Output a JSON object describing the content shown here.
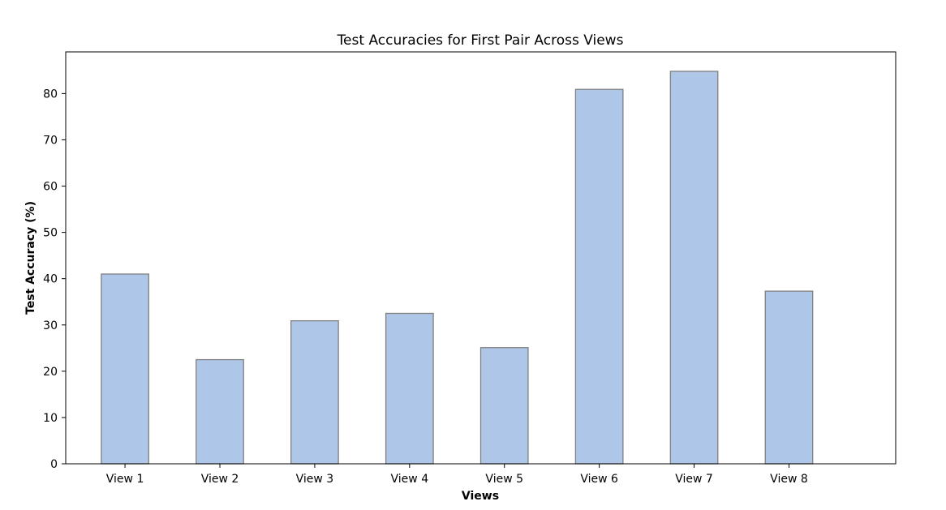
{
  "chart_data": {
    "type": "bar",
    "title": "Test Accuracies for First Pair Across Views",
    "xlabel": "Views",
    "ylabel": "Test Accuracy (%)",
    "categories": [
      "View 1",
      "View 2",
      "View 3",
      "View 4",
      "View 5",
      "View 6",
      "View 7",
      "View 8"
    ],
    "values": [
      41.0,
      22.5,
      30.9,
      32.5,
      25.1,
      80.9,
      84.8,
      37.3
    ],
    "ylim": [
      0,
      89
    ],
    "yticks": [
      0,
      10,
      20,
      30,
      40,
      50,
      60,
      70,
      80
    ],
    "ytick_labels": [
      "0",
      "10",
      "20",
      "30",
      "40",
      "50",
      "60",
      "70",
      "80"
    ],
    "grid": false,
    "legend": "none",
    "colors": {
      "bar_fill": "#aec6e8",
      "bar_edge": "#808080",
      "axis": "#000000"
    }
  }
}
